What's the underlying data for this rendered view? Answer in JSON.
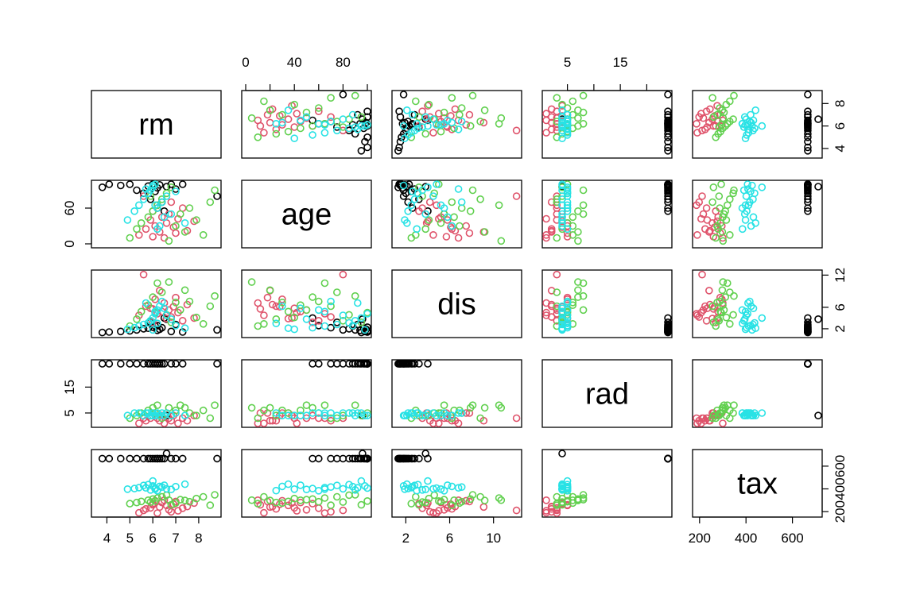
{
  "chart_data": {
    "type": "scatter",
    "title": "",
    "variables": [
      "rm",
      "age",
      "dis",
      "rad",
      "tax"
    ],
    "ranges": {
      "rm": [
        3.5,
        8.8
      ],
      "age": [
        0,
        100
      ],
      "dis": [
        1.1,
        12.2
      ],
      "rad": [
        1,
        24
      ],
      "tax": [
        187,
        711
      ]
    },
    "ticks": {
      "rm": [
        "4",
        "5",
        "6",
        "7",
        "8"
      ],
      "age": [
        "0",
        "40",
        "80"
      ],
      "age_left": [
        "0",
        "60"
      ],
      "dis": [
        "2",
        "6",
        "10"
      ],
      "dis_right": [
        "2",
        "6",
        "12"
      ],
      "rad": [
        "5",
        "15"
      ],
      "tax": [
        "200",
        "400",
        "600"
      ],
      "rm_right": [
        "4",
        "6",
        "8"
      ]
    },
    "group_colors": [
      "#000000",
      "#DF536B",
      "#61D04F",
      "#28E2E5"
    ],
    "groups": [
      {
        "color": "#000000",
        "rm": [
          3.8,
          4.1,
          4.6,
          5.0,
          5.3,
          5.6,
          5.8,
          6.0,
          6.1,
          6.2,
          6.3,
          6.4,
          6.6,
          6.8,
          7.0,
          7.3,
          8.8,
          5.9,
          6.2,
          6.5
        ],
        "age": [
          95,
          100,
          98,
          100,
          90,
          85,
          97,
          100,
          88,
          94,
          99,
          70,
          96,
          100,
          92,
          100,
          80,
          75,
          60,
          55
        ],
        "dis": [
          1.3,
          1.4,
          1.5,
          1.6,
          1.8,
          2.0,
          2.1,
          2.3,
          2.5,
          1.7,
          1.9,
          2.2,
          3.8,
          1.5,
          2.8,
          1.4,
          1.8,
          3.2,
          2.6,
          4.0
        ],
        "rad": [
          24,
          24,
          24,
          24,
          24,
          24,
          24,
          24,
          24,
          24,
          24,
          24,
          4,
          24,
          24,
          24,
          24,
          24,
          24,
          24
        ],
        "tax": [
          666,
          666,
          666,
          666,
          666,
          666,
          666,
          666,
          666,
          666,
          666,
          666,
          711,
          666,
          666,
          666,
          666,
          666,
          666,
          666
        ]
      },
      {
        "color": "#DF536B",
        "rm": [
          5.4,
          5.7,
          5.9,
          6.0,
          6.1,
          6.2,
          6.3,
          6.4,
          6.5,
          6.6,
          6.7,
          6.8,
          6.9,
          7.0,
          7.1,
          7.3,
          7.5,
          7.8,
          5.6,
          6.0
        ],
        "age": [
          15,
          25,
          40,
          55,
          30,
          65,
          20,
          45,
          10,
          35,
          50,
          70,
          28,
          18,
          42,
          60,
          22,
          38,
          80,
          12
        ],
        "dis": [
          4.5,
          6.2,
          5.8,
          3.2,
          7.5,
          4.8,
          9.1,
          5.2,
          6.8,
          3.9,
          5.5,
          4.2,
          6.1,
          7.8,
          5.0,
          3.5,
          6.5,
          4.0,
          12.1,
          5.7
        ],
        "rad": [
          1,
          2,
          3,
          4,
          5,
          3,
          2,
          4,
          1,
          5,
          3,
          2,
          4,
          5,
          1,
          3,
          2,
          4,
          3,
          5
        ],
        "tax": [
          190,
          224,
          233,
          270,
          296,
          187,
          241,
          280,
          300,
          255,
          216,
          198,
          265,
          289,
          207,
          230,
          245,
          276,
          211,
          260
        ]
      },
      {
        "color": "#61D04F",
        "rm": [
          5.0,
          5.3,
          5.5,
          5.8,
          6.0,
          6.2,
          6.4,
          6.6,
          6.8,
          7.0,
          7.2,
          7.4,
          7.6,
          7.9,
          8.2,
          8.5,
          8.7,
          6.1,
          6.7,
          5.9
        ],
        "age": [
          10,
          25,
          35,
          45,
          55,
          65,
          75,
          85,
          95,
          30,
          50,
          20,
          60,
          40,
          15,
          70,
          90,
          100,
          5,
          80
        ],
        "dis": [
          2.5,
          3.8,
          5.2,
          6.4,
          7.9,
          10.5,
          8.8,
          4.6,
          3.2,
          6.9,
          5.5,
          9.2,
          7.1,
          4.1,
          2.9,
          6.2,
          8.1,
          5.0,
          10.7,
          3.5
        ],
        "rad": [
          3,
          4,
          5,
          6,
          7,
          8,
          3,
          5,
          4,
          6,
          8,
          7,
          5,
          4,
          6,
          3,
          8,
          5,
          7,
          4
        ],
        "tax": [
          270,
          280,
          290,
          300,
          311,
          320,
          330,
          345,
          260,
          276,
          305,
          298,
          287,
          315,
          330,
          256,
          348,
          293,
          301,
          284
        ]
      },
      {
        "color": "#28E2E5",
        "rm": [
          4.9,
          5.2,
          5.4,
          5.6,
          5.8,
          5.9,
          6.0,
          6.1,
          6.2,
          6.3,
          6.4,
          6.5,
          6.6,
          6.8,
          7.0,
          7.4,
          5.7,
          6.0,
          6.2,
          6.1
        ],
        "age": [
          40,
          55,
          65,
          75,
          85,
          90,
          95,
          100,
          60,
          30,
          70,
          45,
          80,
          50,
          88,
          35,
          92,
          98,
          25,
          65
        ],
        "dis": [
          1.9,
          2.2,
          2.5,
          2.8,
          3.1,
          3.5,
          4.0,
          4.8,
          5.5,
          6.2,
          7.1,
          5.8,
          4.5,
          3.8,
          2.6,
          2.1,
          6.8,
          1.8,
          3.0,
          5.2
        ],
        "rad": [
          4,
          5,
          5,
          4,
          5,
          4,
          5,
          4,
          5,
          4,
          5,
          4,
          5,
          4,
          5,
          4,
          5,
          4,
          5,
          4
        ],
        "tax": [
          398,
          403,
          411,
          430,
          437,
          391,
          469,
          407,
          384,
          422,
          416,
          432,
          401,
          395,
          420,
          441,
          409,
          426,
          385,
          398
        ]
      }
    ]
  }
}
